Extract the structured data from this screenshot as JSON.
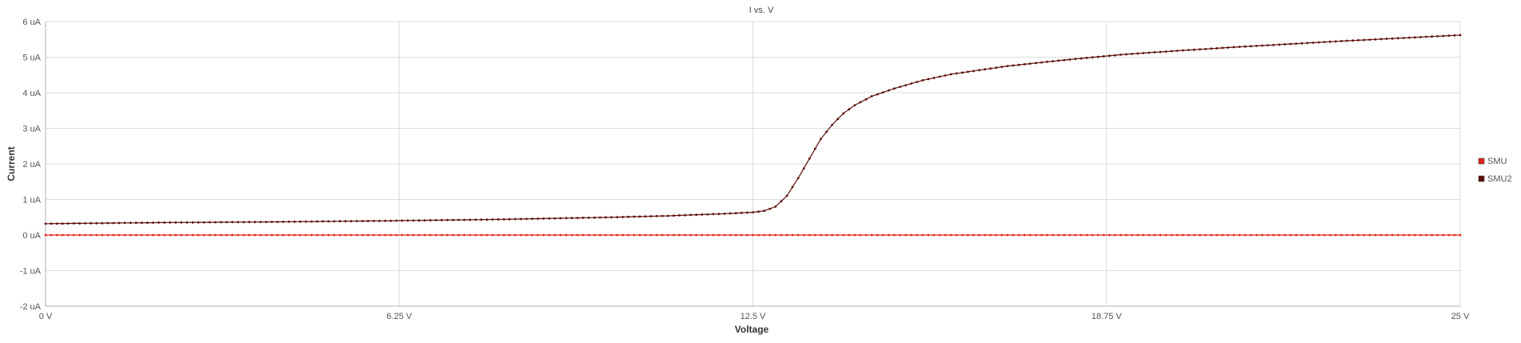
{
  "chart_data": {
    "type": "line",
    "title": "I vs. V",
    "xlabel": "Voltage",
    "ylabel": "Current",
    "xlim": [
      0,
      25
    ],
    "ylim": [
      -2,
      6
    ],
    "x_ticks": [
      0,
      6.25,
      12.5,
      18.75,
      25
    ],
    "x_tick_labels": [
      "0 V",
      "6.25 V",
      "12.5 V",
      "18.75 V",
      "25 V"
    ],
    "y_ticks": [
      -2,
      -1,
      0,
      1,
      2,
      3,
      4,
      5,
      6
    ],
    "y_tick_labels": [
      "-2 uA",
      "-1 uA",
      "0 uA",
      "1 uA",
      "2 uA",
      "3 uA",
      "4 uA",
      "5 uA",
      "6 uA"
    ],
    "grid": true,
    "legend_position": "right",
    "series": [
      {
        "name": "SMU",
        "color": "#e0241b",
        "x": [
          0,
          2,
          4,
          6,
          8,
          10,
          12,
          14,
          16,
          18,
          20,
          22,
          24,
          25
        ],
        "y": [
          0,
          0,
          0,
          0,
          0,
          0,
          0,
          0,
          0,
          0,
          0,
          0,
          0,
          0
        ]
      },
      {
        "name": "SMU2",
        "color": "#5c0f0a",
        "x": [
          0,
          2,
          4,
          6,
          8,
          10,
          11,
          12,
          12.5,
          12.7,
          12.9,
          13.1,
          13.3,
          13.5,
          13.7,
          13.9,
          14.1,
          14.3,
          14.6,
          15,
          15.5,
          16,
          17,
          18,
          19,
          20,
          21,
          22,
          23,
          24,
          25
        ],
        "y": [
          0.32,
          0.35,
          0.37,
          0.4,
          0.44,
          0.5,
          0.54,
          0.6,
          0.64,
          0.68,
          0.8,
          1.1,
          1.6,
          2.15,
          2.7,
          3.1,
          3.42,
          3.65,
          3.9,
          4.12,
          4.35,
          4.52,
          4.75,
          4.92,
          5.07,
          5.18,
          5.28,
          5.37,
          5.46,
          5.54,
          5.62
        ]
      }
    ]
  }
}
